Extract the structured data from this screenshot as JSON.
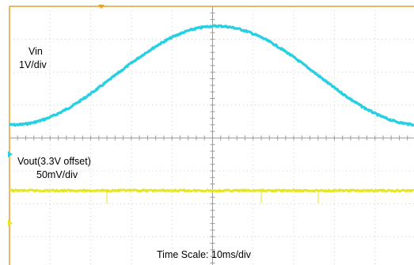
{
  "channels": [
    {
      "name": "Vin",
      "scale": "1V/div",
      "color": "#27cfe2",
      "waveform": "sine",
      "amplitude_div": 1.5,
      "offset_div": 1.9,
      "period_div": 10,
      "phase_div": 5.1
    },
    {
      "name": "Vout(3.3V offset)",
      "scale": "50mV/div",
      "color": "#e6e622",
      "waveform": "flat",
      "offset_div": -1.6
    }
  ],
  "time_scale": "Time Scale: 10ms/div",
  "colors": {
    "background": "#ffffff",
    "grid_dots": "#cfcfcf",
    "axis_line": "#9a9a9a",
    "frame": "#e0a030",
    "trigger_marker": "#e8a020",
    "ch1_marker": "#27cfe2",
    "ch2_marker": "#e6e622"
  },
  "grid": {
    "divisions_x": 10,
    "divisions_y": 8
  }
}
